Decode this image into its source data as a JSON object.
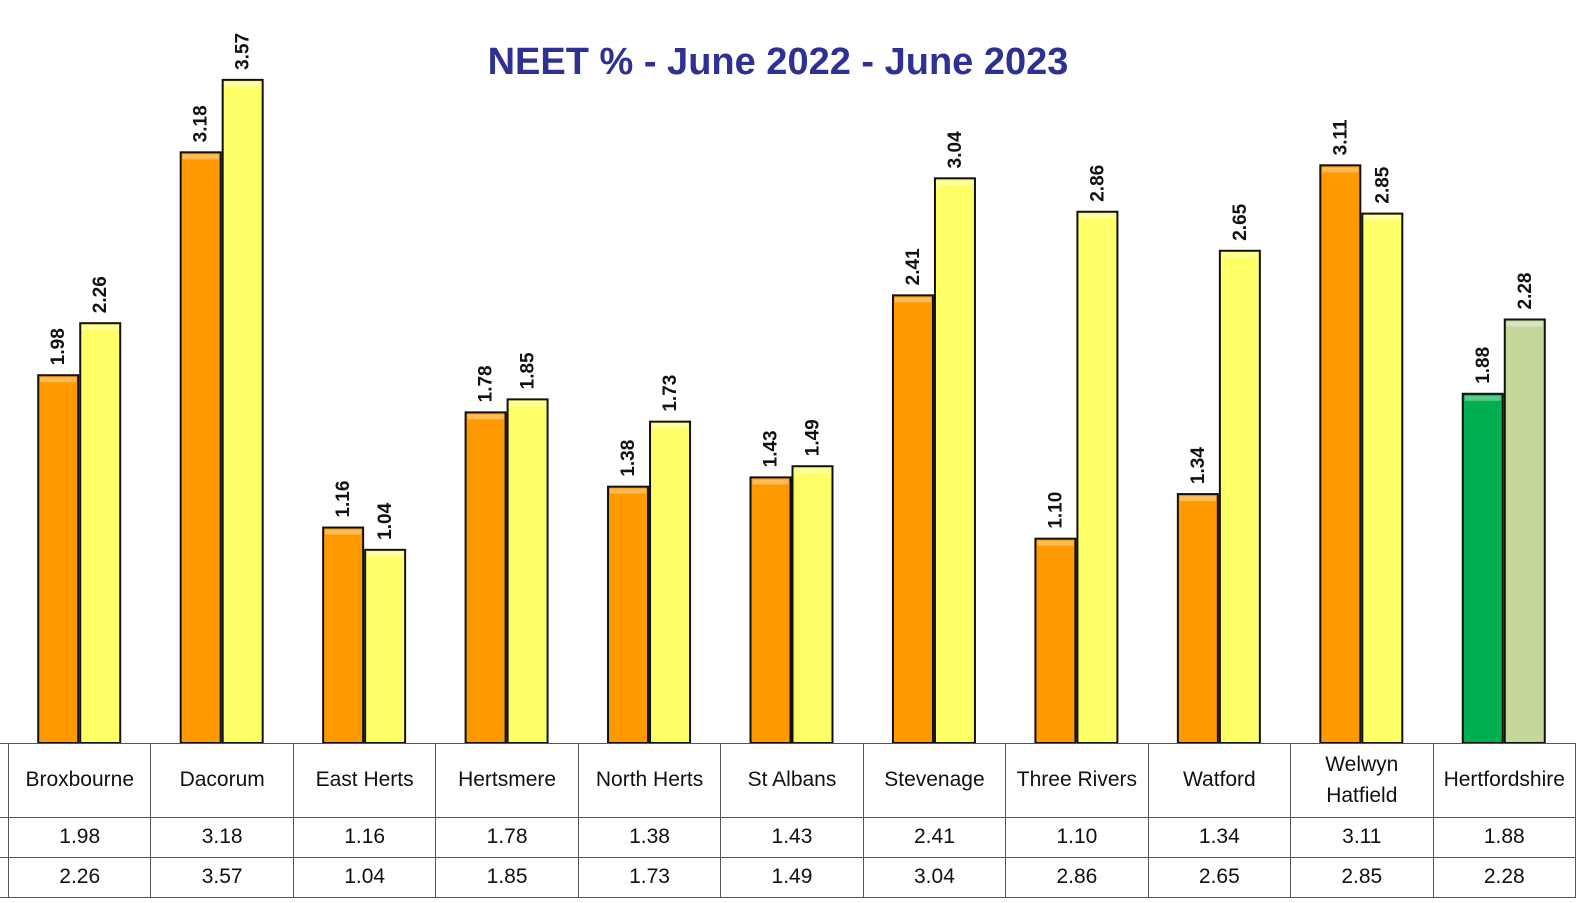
{
  "chart_data": {
    "type": "bar",
    "title": "NEET % - June 2022 - June 2023",
    "categories": [
      "Broxbourne",
      "Dacorum",
      "East Herts",
      "Hertsmere",
      "North Herts",
      "St Albans",
      "Stevenage",
      "Three Rivers",
      "Watford",
      "Welwyn Hatfield",
      "Hertfordshire"
    ],
    "series": [
      {
        "color": "#ff9900",
        "colors": [
          "#ff9900",
          "#ff9900",
          "#ff9900",
          "#ff9900",
          "#ff9900",
          "#ff9900",
          "#ff9900",
          "#ff9900",
          "#ff9900",
          "#ff9900",
          "#00b050"
        ],
        "values": [
          1.98,
          3.18,
          1.16,
          1.78,
          1.38,
          1.43,
          2.41,
          1.1,
          1.34,
          3.11,
          1.88
        ],
        "value_labels": [
          "1.98",
          "3.18",
          "1.16",
          "1.78",
          "1.38",
          "1.43",
          "2.41",
          "1.10",
          "1.34",
          "3.11",
          "1.88"
        ]
      },
      {
        "color": "#ffff66",
        "colors": [
          "#ffff66",
          "#ffff66",
          "#ffff66",
          "#ffff66",
          "#ffff66",
          "#ffff66",
          "#ffff66",
          "#ffff66",
          "#ffff66",
          "#ffff66",
          "#c4d79b"
        ],
        "values": [
          2.26,
          3.57,
          1.04,
          1.85,
          1.73,
          1.49,
          3.04,
          2.86,
          2.65,
          2.85,
          2.28
        ],
        "value_labels": [
          "2.26",
          "3.57",
          "1.04",
          "1.85",
          "1.73",
          "1.49",
          "3.04",
          "2.86",
          "2.65",
          "2.85",
          "2.28"
        ]
      }
    ],
    "ylim": [
      0,
      4
    ],
    "title_color": "#2e3192"
  }
}
